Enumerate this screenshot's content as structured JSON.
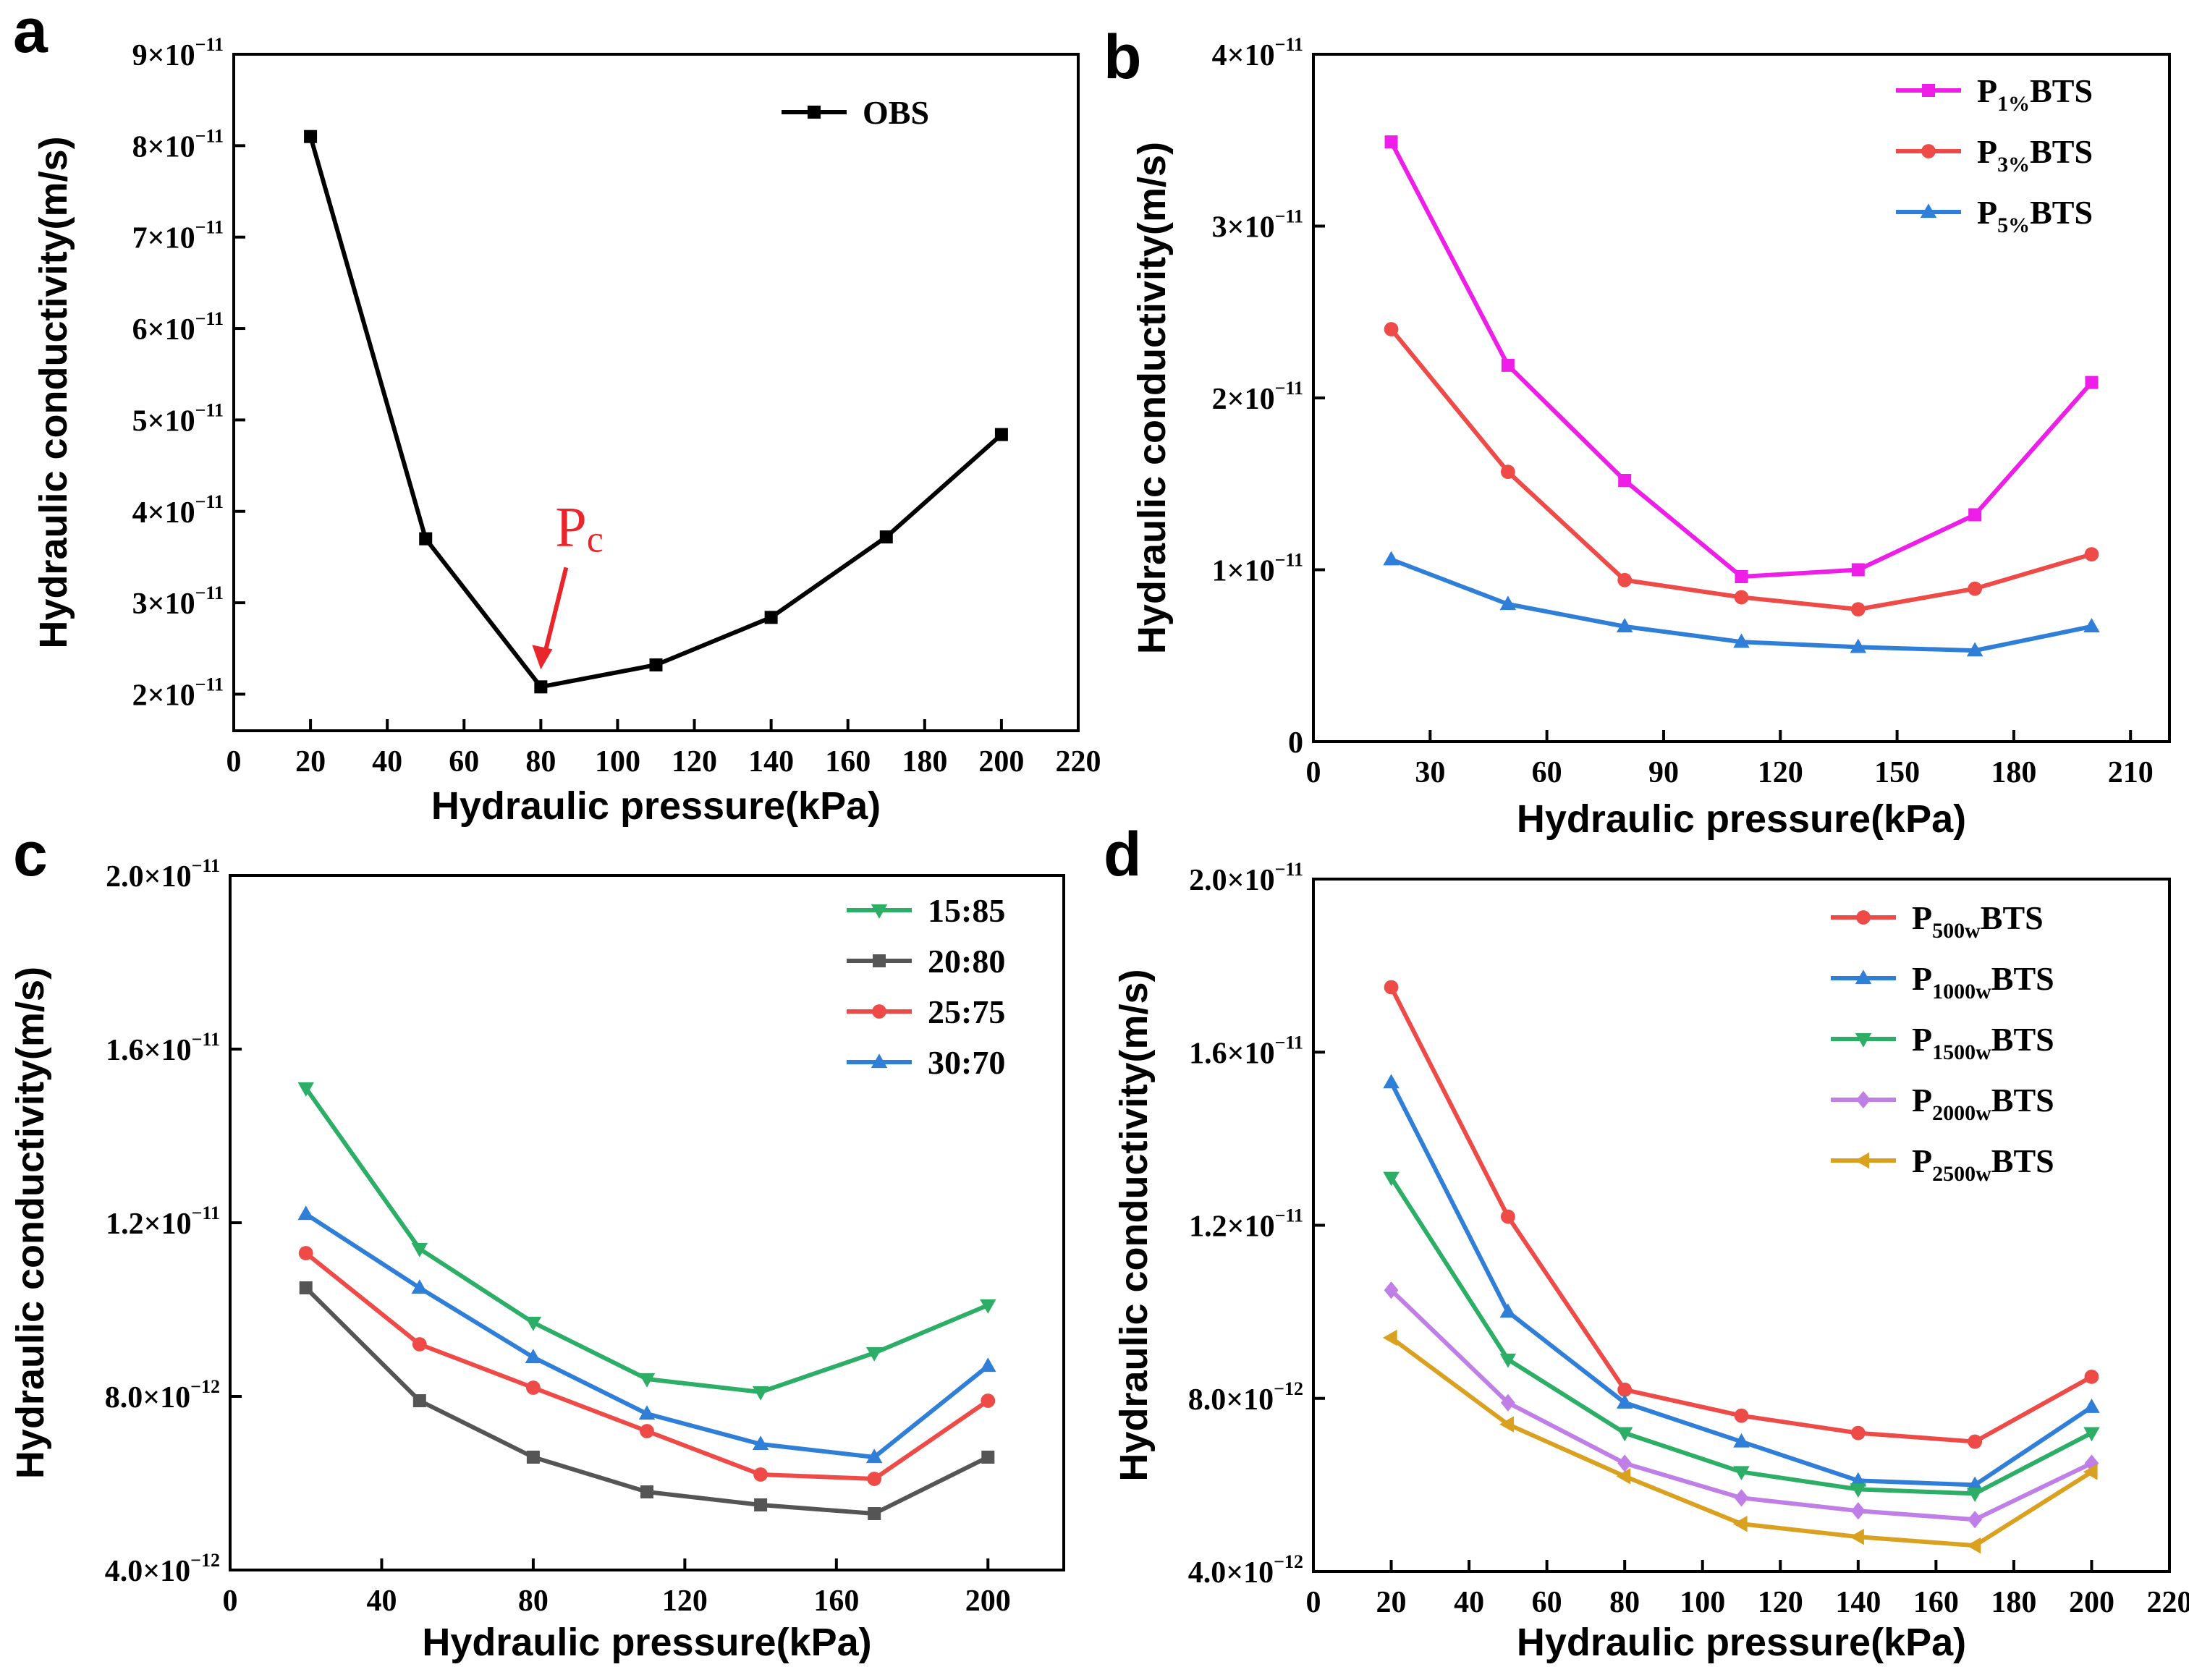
{
  "chart_data": [
    {
      "panel": "a",
      "type": "line",
      "xlabel": "Hydraulic pressure(kPa)",
      "ylabel": "Hydraulic conductivity(m/s)",
      "xlim": [
        0,
        220
      ],
      "xticks": [
        0,
        20,
        40,
        60,
        80,
        100,
        120,
        140,
        160,
        180,
        200,
        220
      ],
      "ylim": [
        1.6e-11,
        9e-11
      ],
      "yticks": [
        {
          "value": 2e-11,
          "mant": "2×10",
          "exp": "−11"
        },
        {
          "value": 3e-11,
          "mant": "3×10",
          "exp": "−11"
        },
        {
          "value": 4e-11,
          "mant": "4×10",
          "exp": "−11"
        },
        {
          "value": 5e-11,
          "mant": "5×10",
          "exp": "−11"
        },
        {
          "value": 6e-11,
          "mant": "6×10",
          "exp": "−11"
        },
        {
          "value": 7e-11,
          "mant": "7×10",
          "exp": "−11"
        },
        {
          "value": 8e-11,
          "mant": "8×10",
          "exp": "−11"
        },
        {
          "value": 9e-11,
          "mant": "9×10",
          "exp": "−11"
        }
      ],
      "annotation": {
        "main": "P",
        "sub": "c",
        "x": 80,
        "y": 2.08e-11
      },
      "series": [
        {
          "main": "OBS",
          "sub": "",
          "suffix": "",
          "color": "#000000",
          "marker": "square",
          "x": [
            20,
            50,
            80,
            110,
            140,
            170,
            200
          ],
          "values": [
            8.1e-11,
            3.7e-11,
            2.08e-11,
            2.32e-11,
            2.84e-11,
            3.72e-11,
            4.84e-11
          ]
        }
      ]
    },
    {
      "panel": "b",
      "type": "line",
      "xlabel": "Hydraulic pressure(kPa)",
      "ylabel": "Hydraulic conductivity(m/s)",
      "xlim": [
        0,
        220
      ],
      "xticks": [
        0,
        30,
        60,
        90,
        120,
        150,
        180,
        210
      ],
      "ylim": [
        0,
        4e-11
      ],
      "yticks": [
        {
          "value": 0,
          "mant": "0",
          "exp": ""
        },
        {
          "value": 1e-11,
          "mant": "1×10",
          "exp": "−11"
        },
        {
          "value": 2e-11,
          "mant": "2×10",
          "exp": "−11"
        },
        {
          "value": 3e-11,
          "mant": "3×10",
          "exp": "−11"
        },
        {
          "value": 4e-11,
          "mant": "4×10",
          "exp": "−11"
        }
      ],
      "series": [
        {
          "main": "P",
          "sub": "1%",
          "suffix": "BTS",
          "color": "#ee1ee8",
          "marker": "square",
          "x": [
            20,
            50,
            80,
            110,
            140,
            170,
            200
          ],
          "values": [
            3.49e-11,
            2.19e-11,
            1.52e-11,
            9.6e-12,
            1e-11,
            1.32e-11,
            2.09e-11
          ]
        },
        {
          "main": "P",
          "sub": "3%",
          "suffix": "BTS",
          "color": "#ee4b48",
          "marker": "circle",
          "x": [
            20,
            50,
            80,
            110,
            140,
            170,
            200
          ],
          "values": [
            2.4e-11,
            1.57e-11,
            9.4e-12,
            8.4e-12,
            7.7e-12,
            8.9e-12,
            1.09e-11
          ]
        },
        {
          "main": "P",
          "sub": "5%",
          "suffix": "BTS",
          "color": "#2f7fd8",
          "marker": "triangle-up",
          "x": [
            20,
            50,
            80,
            110,
            140,
            170,
            200
          ],
          "values": [
            1.06e-11,
            8e-12,
            6.7e-12,
            5.8e-12,
            5.5e-12,
            5.3e-12,
            6.7e-12
          ]
        }
      ]
    },
    {
      "panel": "c",
      "type": "line",
      "xlabel": "Hydraulic pressure(kPa)",
      "ylabel": "Hydraulic conductivity(m/s)",
      "xlim": [
        0,
        220
      ],
      "xticks": [
        0,
        40,
        80,
        120,
        160,
        200
      ],
      "ylim": [
        4e-12,
        2e-11
      ],
      "yticks": [
        {
          "value": 4e-12,
          "mant": "4.0×10",
          "exp": "−12"
        },
        {
          "value": 8e-12,
          "mant": "8.0×10",
          "exp": "−12"
        },
        {
          "value": 1.2e-11,
          "mant": "1.2×10",
          "exp": "−11"
        },
        {
          "value": 1.6e-11,
          "mant": "1.6×10",
          "exp": "−11"
        },
        {
          "value": 2e-11,
          "mant": "2.0×10",
          "exp": "−11"
        }
      ],
      "series": [
        {
          "main": "15:85",
          "sub": "",
          "suffix": "",
          "color": "#2cae66",
          "marker": "triangle-down",
          "x": [
            20,
            50,
            80,
            110,
            140,
            170,
            200
          ],
          "values": [
            1.51e-11,
            1.14e-11,
            9.7e-12,
            8.4e-12,
            8.1e-12,
            9e-12,
            1.01e-11
          ]
        },
        {
          "main": "20:80",
          "sub": "",
          "suffix": "",
          "color": "#555555",
          "marker": "square",
          "x": [
            20,
            50,
            80,
            110,
            140,
            170,
            200
          ],
          "values": [
            1.05e-11,
            7.9e-12,
            6.6e-12,
            5.8e-12,
            5.5e-12,
            5.3e-12,
            6.6e-12
          ]
        },
        {
          "main": "25:75",
          "sub": "",
          "suffix": "",
          "color": "#ee4b48",
          "marker": "circle",
          "x": [
            20,
            50,
            80,
            110,
            140,
            170,
            200
          ],
          "values": [
            1.13e-11,
            9.2e-12,
            8.2e-12,
            7.2e-12,
            6.2e-12,
            6.1e-12,
            7.9e-12
          ]
        },
        {
          "main": "30:70",
          "sub": "",
          "suffix": "",
          "color": "#2f7fd8",
          "marker": "triangle-up",
          "x": [
            20,
            50,
            80,
            110,
            140,
            170,
            200
          ],
          "values": [
            1.22e-11,
            1.05e-11,
            8.9e-12,
            7.6e-12,
            6.9e-12,
            6.6e-12,
            8.7e-12
          ]
        }
      ]
    },
    {
      "panel": "d",
      "type": "line",
      "xlabel": "Hydraulic pressure(kPa)",
      "ylabel": "Hydraulic conductivity(m/s)",
      "xlim": [
        0,
        220
      ],
      "xticks": [
        0,
        20,
        40,
        60,
        80,
        100,
        120,
        140,
        160,
        180,
        200,
        220
      ],
      "ylim": [
        4e-12,
        2e-11
      ],
      "yticks": [
        {
          "value": 4e-12,
          "mant": "4.0×10",
          "exp": "−12"
        },
        {
          "value": 8e-12,
          "mant": "8.0×10",
          "exp": "−12"
        },
        {
          "value": 1.2e-11,
          "mant": "1.2×10",
          "exp": "−11"
        },
        {
          "value": 1.6e-11,
          "mant": "1.6×10",
          "exp": "−11"
        },
        {
          "value": 2e-11,
          "mant": "2.0×10",
          "exp": "−11"
        }
      ],
      "series": [
        {
          "main": "P",
          "sub": "500w",
          "suffix": "BTS",
          "color": "#ee4b48",
          "marker": "circle",
          "x": [
            20,
            50,
            80,
            110,
            140,
            170,
            200
          ],
          "values": [
            1.75e-11,
            1.22e-11,
            8.2e-12,
            7.6e-12,
            7.2e-12,
            7e-12,
            8.5e-12
          ]
        },
        {
          "main": "P",
          "sub": "1000w",
          "suffix": "BTS",
          "color": "#2f7fd8",
          "marker": "triangle-up",
          "x": [
            20,
            50,
            80,
            110,
            140,
            170,
            200
          ],
          "values": [
            1.53e-11,
            1e-11,
            7.9e-12,
            7e-12,
            6.1e-12,
            6e-12,
            7.8e-12
          ]
        },
        {
          "main": "P",
          "sub": "1500w",
          "suffix": "BTS",
          "color": "#2cae66",
          "marker": "triangle-down",
          "x": [
            20,
            50,
            80,
            110,
            140,
            170,
            200
          ],
          "values": [
            1.31e-11,
            8.9e-12,
            7.2e-12,
            6.3e-12,
            5.9e-12,
            5.8e-12,
            7.2e-12
          ]
        },
        {
          "main": "P",
          "sub": "2000w",
          "suffix": "BTS",
          "color": "#c07fe6",
          "marker": "diamond",
          "x": [
            20,
            50,
            80,
            110,
            140,
            170,
            200
          ],
          "values": [
            1.05e-11,
            7.9e-12,
            6.5e-12,
            5.7e-12,
            5.4e-12,
            5.2e-12,
            6.5e-12
          ]
        },
        {
          "main": "P",
          "sub": "2500w",
          "suffix": "BTS",
          "color": "#d9a11f",
          "marker": "triangle-left",
          "x": [
            20,
            50,
            80,
            110,
            140,
            170,
            200
          ],
          "values": [
            9.4e-12,
            7.4e-12,
            6.2e-12,
            5.1e-12,
            4.8e-12,
            4.6e-12,
            6.3e-12
          ]
        }
      ]
    }
  ]
}
